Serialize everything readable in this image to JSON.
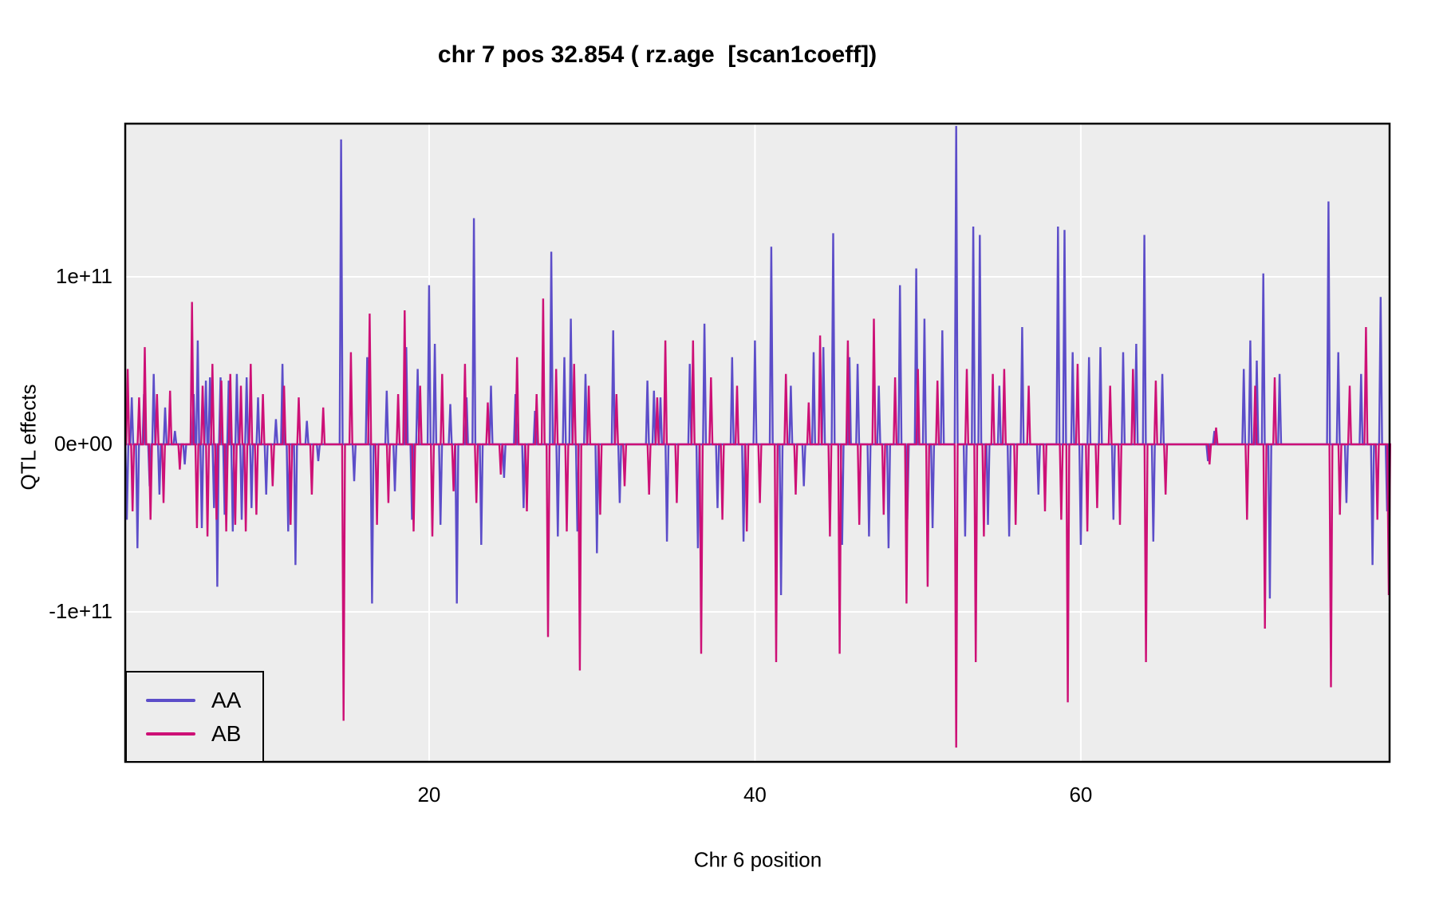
{
  "chart_data": {
    "type": "line",
    "title": "chr 7 pos 32.854 ( rz.age  [scan1coeff])",
    "xlabel": "Chr 6 position",
    "ylabel": "QTL effects",
    "xlim": [
      1.35,
      78.95
    ],
    "ylim_e11": [
      -1.895,
      1.914
    ],
    "value_unit": "1e+11",
    "x_ticks": [
      {
        "label": "20",
        "value": 20
      },
      {
        "label": "40",
        "value": 40
      },
      {
        "label": "60",
        "value": 60
      }
    ],
    "y_ticks": [
      {
        "label": "1e+11",
        "value_e11": 1
      },
      {
        "label": "0e+00",
        "value_e11": 0
      },
      {
        "label": "-1e+11",
        "value_e11": -1
      }
    ],
    "grid": "major gridlines only, white on grey panel",
    "legend_position": "bottom-left inside panel",
    "panel_bg": "#EDEDED",
    "grid_color": "#FFFFFF",
    "border_color": "#000000",
    "series": [
      {
        "name": "AA",
        "color": "#5C4DC9",
        "baseline_e11": 0,
        "spikes_pos_val_e11": [
          [
            1.45,
            -0.45
          ],
          [
            1.75,
            0.28
          ],
          [
            2.1,
            -0.62
          ],
          [
            2.5,
            0.3
          ],
          [
            2.85,
            -0.25
          ],
          [
            3.1,
            0.42
          ],
          [
            3.45,
            -0.3
          ],
          [
            3.8,
            0.22
          ],
          [
            4.4,
            0.08
          ],
          [
            5.0,
            -0.12
          ],
          [
            5.55,
            0.3
          ],
          [
            5.8,
            0.62
          ],
          [
            6.05,
            -0.5
          ],
          [
            6.3,
            0.38
          ],
          [
            6.55,
            0.4
          ],
          [
            6.8,
            -0.38
          ],
          [
            7.0,
            -0.85
          ],
          [
            7.2,
            0.4
          ],
          [
            7.45,
            -0.42
          ],
          [
            7.7,
            0.38
          ],
          [
            7.95,
            -0.52
          ],
          [
            8.2,
            0.42
          ],
          [
            8.5,
            -0.45
          ],
          [
            8.8,
            0.4
          ],
          [
            9.1,
            -0.38
          ],
          [
            9.5,
            0.28
          ],
          [
            10.0,
            -0.3
          ],
          [
            10.6,
            0.15
          ],
          [
            11.0,
            0.48
          ],
          [
            11.35,
            -0.52
          ],
          [
            11.8,
            -0.72
          ],
          [
            12.5,
            0.14
          ],
          [
            13.2,
            -0.1
          ],
          [
            14.6,
            1.82
          ],
          [
            15.4,
            -0.22
          ],
          [
            16.2,
            0.52
          ],
          [
            16.5,
            -0.95
          ],
          [
            17.4,
            0.32
          ],
          [
            17.9,
            -0.28
          ],
          [
            18.6,
            0.58
          ],
          [
            18.95,
            -0.45
          ],
          [
            19.3,
            0.45
          ],
          [
            20.0,
            0.95
          ],
          [
            20.35,
            0.6
          ],
          [
            20.7,
            -0.48
          ],
          [
            21.3,
            0.24
          ],
          [
            21.7,
            -0.95
          ],
          [
            22.3,
            0.28
          ],
          [
            22.75,
            1.35
          ],
          [
            23.2,
            -0.6
          ],
          [
            23.8,
            0.35
          ],
          [
            24.6,
            -0.2
          ],
          [
            25.3,
            0.3
          ],
          [
            25.8,
            -0.38
          ],
          [
            26.5,
            0.2
          ],
          [
            27.5,
            1.15
          ],
          [
            27.9,
            -0.55
          ],
          [
            28.3,
            0.52
          ],
          [
            28.7,
            0.75
          ],
          [
            29.1,
            -0.52
          ],
          [
            29.6,
            0.42
          ],
          [
            30.3,
            -0.65
          ],
          [
            31.3,
            0.68
          ],
          [
            31.7,
            -0.35
          ],
          [
            33.4,
            0.38
          ],
          [
            33.8,
            0.32
          ],
          [
            34.2,
            0.28
          ],
          [
            34.6,
            -0.58
          ],
          [
            36.0,
            0.48
          ],
          [
            36.5,
            -0.62
          ],
          [
            36.9,
            0.72
          ],
          [
            37.7,
            -0.38
          ],
          [
            38.6,
            0.52
          ],
          [
            39.3,
            -0.58
          ],
          [
            40.0,
            0.62
          ],
          [
            41.0,
            1.18
          ],
          [
            41.6,
            -0.9
          ],
          [
            42.2,
            0.35
          ],
          [
            43.0,
            -0.25
          ],
          [
            43.6,
            0.55
          ],
          [
            44.2,
            0.58
          ],
          [
            44.8,
            1.26
          ],
          [
            45.35,
            -0.6
          ],
          [
            45.8,
            0.52
          ],
          [
            46.3,
            0.48
          ],
          [
            47.0,
            -0.55
          ],
          [
            47.6,
            0.35
          ],
          [
            48.2,
            -0.62
          ],
          [
            48.9,
            0.95
          ],
          [
            49.35,
            -0.45
          ],
          [
            49.9,
            1.05
          ],
          [
            50.4,
            0.75
          ],
          [
            50.9,
            -0.5
          ],
          [
            51.5,
            0.68
          ],
          [
            52.35,
            1.9
          ],
          [
            52.9,
            -0.55
          ],
          [
            53.4,
            1.3
          ],
          [
            53.8,
            1.25
          ],
          [
            54.3,
            -0.48
          ],
          [
            55.0,
            0.35
          ],
          [
            55.6,
            -0.55
          ],
          [
            56.4,
            0.7
          ],
          [
            57.4,
            -0.3
          ],
          [
            58.6,
            1.3
          ],
          [
            59.0,
            1.28
          ],
          [
            59.5,
            0.55
          ],
          [
            60.0,
            -0.6
          ],
          [
            60.5,
            0.52
          ],
          [
            61.2,
            0.58
          ],
          [
            62.0,
            -0.45
          ],
          [
            62.6,
            0.55
          ],
          [
            63.4,
            0.6
          ],
          [
            63.9,
            1.25
          ],
          [
            64.45,
            -0.58
          ],
          [
            65.0,
            0.42
          ],
          [
            67.8,
            -0.1
          ],
          [
            68.2,
            0.08
          ],
          [
            70.0,
            0.45
          ],
          [
            70.4,
            0.62
          ],
          [
            70.8,
            0.5
          ],
          [
            71.2,
            1.02
          ],
          [
            71.6,
            -0.92
          ],
          [
            72.2,
            0.42
          ],
          [
            75.2,
            1.45
          ],
          [
            75.8,
            0.55
          ],
          [
            76.3,
            -0.35
          ],
          [
            77.2,
            0.42
          ],
          [
            77.9,
            -0.72
          ],
          [
            78.4,
            0.88
          ],
          [
            78.8,
            -0.4
          ]
        ]
      },
      {
        "name": "AB",
        "color": "#CD1076",
        "baseline_e11": 0,
        "spikes_pos_val_e11": [
          [
            1.5,
            0.45
          ],
          [
            1.8,
            -0.4
          ],
          [
            2.2,
            0.28
          ],
          [
            2.55,
            0.58
          ],
          [
            2.9,
            -0.45
          ],
          [
            3.3,
            0.3
          ],
          [
            3.7,
            -0.35
          ],
          [
            4.1,
            0.32
          ],
          [
            4.7,
            -0.15
          ],
          [
            5.45,
            0.85
          ],
          [
            5.75,
            -0.5
          ],
          [
            6.1,
            0.35
          ],
          [
            6.4,
            -0.55
          ],
          [
            6.7,
            0.48
          ],
          [
            6.95,
            -0.45
          ],
          [
            7.25,
            0.38
          ],
          [
            7.55,
            -0.52
          ],
          [
            7.8,
            0.42
          ],
          [
            8.1,
            -0.48
          ],
          [
            8.45,
            0.35
          ],
          [
            8.75,
            -0.52
          ],
          [
            9.05,
            0.48
          ],
          [
            9.4,
            -0.42
          ],
          [
            9.8,
            0.3
          ],
          [
            10.4,
            -0.25
          ],
          [
            11.1,
            0.35
          ],
          [
            11.5,
            -0.48
          ],
          [
            12.0,
            0.28
          ],
          [
            12.8,
            -0.3
          ],
          [
            13.5,
            0.22
          ],
          [
            14.75,
            -1.65
          ],
          [
            15.2,
            0.55
          ],
          [
            16.35,
            0.78
          ],
          [
            16.8,
            -0.48
          ],
          [
            17.5,
            -0.35
          ],
          [
            18.1,
            0.3
          ],
          [
            18.5,
            0.8
          ],
          [
            19.05,
            -0.52
          ],
          [
            19.45,
            0.35
          ],
          [
            20.2,
            -0.55
          ],
          [
            20.8,
            0.42
          ],
          [
            21.5,
            -0.28
          ],
          [
            22.2,
            0.48
          ],
          [
            22.9,
            -0.35
          ],
          [
            23.6,
            0.25
          ],
          [
            24.4,
            -0.18
          ],
          [
            25.4,
            0.52
          ],
          [
            26.0,
            -0.4
          ],
          [
            26.6,
            0.3
          ],
          [
            27.0,
            0.87
          ],
          [
            27.3,
            -1.15
          ],
          [
            27.8,
            0.45
          ],
          [
            28.45,
            -0.52
          ],
          [
            28.9,
            0.48
          ],
          [
            29.25,
            -1.35
          ],
          [
            29.8,
            0.35
          ],
          [
            30.5,
            -0.42
          ],
          [
            31.5,
            0.3
          ],
          [
            32.0,
            -0.25
          ],
          [
            33.5,
            -0.3
          ],
          [
            34.0,
            0.28
          ],
          [
            34.5,
            0.62
          ],
          [
            35.2,
            -0.35
          ],
          [
            36.2,
            0.62
          ],
          [
            36.7,
            -1.25
          ],
          [
            37.3,
            0.4
          ],
          [
            38.0,
            -0.45
          ],
          [
            38.9,
            0.35
          ],
          [
            39.5,
            -0.52
          ],
          [
            40.3,
            -0.35
          ],
          [
            41.3,
            -1.3
          ],
          [
            41.9,
            0.42
          ],
          [
            42.5,
            -0.3
          ],
          [
            43.3,
            0.25
          ],
          [
            44.0,
            0.65
          ],
          [
            44.6,
            -0.55
          ],
          [
            45.2,
            -1.25
          ],
          [
            45.7,
            0.62
          ],
          [
            46.4,
            -0.48
          ],
          [
            47.3,
            0.75
          ],
          [
            47.9,
            -0.42
          ],
          [
            48.6,
            0.4
          ],
          [
            49.3,
            -0.95
          ],
          [
            50.0,
            0.45
          ],
          [
            50.6,
            -0.85
          ],
          [
            51.2,
            0.38
          ],
          [
            52.35,
            -1.81
          ],
          [
            53.0,
            0.45
          ],
          [
            53.55,
            -1.3
          ],
          [
            54.05,
            -0.55
          ],
          [
            54.6,
            0.42
          ],
          [
            55.3,
            0.45
          ],
          [
            56.0,
            -0.48
          ],
          [
            56.8,
            0.35
          ],
          [
            57.8,
            -0.4
          ],
          [
            58.8,
            -0.45
          ],
          [
            59.2,
            -1.54
          ],
          [
            59.8,
            0.48
          ],
          [
            60.4,
            -0.52
          ],
          [
            61.0,
            -0.38
          ],
          [
            61.8,
            0.35
          ],
          [
            62.4,
            -0.48
          ],
          [
            63.2,
            0.45
          ],
          [
            64.0,
            -1.3
          ],
          [
            64.6,
            0.38
          ],
          [
            65.2,
            -0.3
          ],
          [
            67.9,
            -0.12
          ],
          [
            68.3,
            0.1
          ],
          [
            70.2,
            -0.45
          ],
          [
            70.7,
            0.35
          ],
          [
            71.3,
            -1.1
          ],
          [
            71.9,
            0.4
          ],
          [
            75.35,
            -1.45
          ],
          [
            75.9,
            -0.42
          ],
          [
            76.5,
            0.35
          ],
          [
            77.5,
            0.7
          ],
          [
            78.2,
            -0.45
          ],
          [
            78.9,
            -0.9
          ]
        ]
      }
    ]
  }
}
